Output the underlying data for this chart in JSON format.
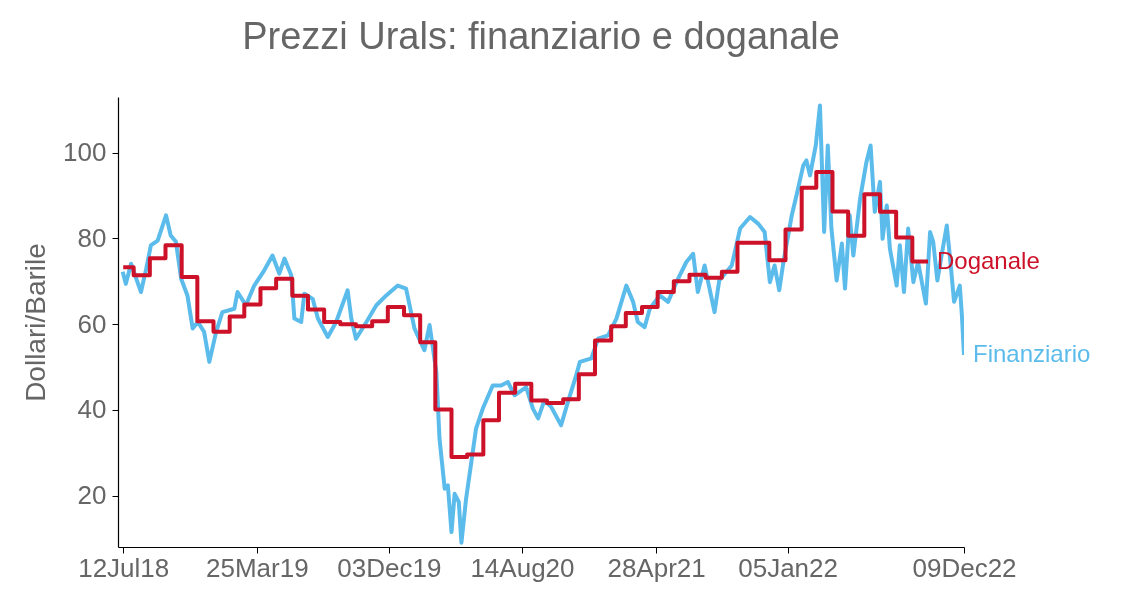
{
  "chart_data": {
    "type": "line",
    "title": "Prezzi Urals: finanziario e doganale",
    "ylabel": "Dollari/Barile",
    "xlim": [
      "2018-07-02",
      "2022-12-09"
    ],
    "ylim": [
      8,
      113
    ],
    "yticks": [
      20,
      40,
      60,
      80,
      100
    ],
    "xticks": [
      {
        "value": "2018-07-12",
        "label": "12Jul18"
      },
      {
        "value": "2019-03-25",
        "label": "25Mar19"
      },
      {
        "value": "2019-12-03",
        "label": "03Dec19"
      },
      {
        "value": "2020-08-14",
        "label": "14Aug20"
      },
      {
        "value": "2021-04-28",
        "label": "28Apr21"
      },
      {
        "value": "2022-01-05",
        "label": "05Jan22"
      },
      {
        "value": "2022-12-09",
        "label": "09Dec22"
      }
    ],
    "series": [
      {
        "name": "Finanziario",
        "type": "line",
        "color": "#5bbcec",
        "x": [
          "2018-07-11",
          "2018-07-17",
          "2018-07-27",
          "2018-08-15",
          "2018-08-25",
          "2018-09-03",
          "2018-09-16",
          "2018-10-02",
          "2018-10-11",
          "2018-10-21",
          "2018-10-31",
          "2018-11-12",
          "2018-11-22",
          "2018-12-02",
          "2018-12-14",
          "2018-12-24",
          "2019-01-06",
          "2019-01-18",
          "2019-02-10",
          "2019-02-16",
          "2019-03-04",
          "2019-03-20",
          "2019-04-08",
          "2019-04-24",
          "2019-05-07",
          "2019-05-17",
          "2019-05-30",
          "2019-06-05",
          "2019-06-18",
          "2019-06-24",
          "2019-07-10",
          "2019-07-20",
          "2019-08-08",
          "2019-08-24",
          "2019-09-15",
          "2019-09-22",
          "2019-10-01",
          "2019-10-21",
          "2019-11-09",
          "2019-11-28",
          "2019-12-20",
          "2020-01-05",
          "2020-01-21",
          "2020-02-09",
          "2020-02-19",
          "2020-03-03",
          "2020-03-09",
          "2020-03-19",
          "2020-03-25",
          "2020-04-01",
          "2020-04-07",
          "2020-04-15",
          "2020-04-20",
          "2020-04-29",
          "2020-05-09",
          "2020-05-18",
          "2020-05-31",
          "2020-06-19",
          "2020-07-05",
          "2020-07-18",
          "2020-07-31",
          "2020-08-22",
          "2020-09-04",
          "2020-09-14",
          "2020-09-26",
          "2020-10-09",
          "2020-10-28",
          "2020-11-10",
          "2020-11-26",
          "2020-12-03",
          "2020-12-25",
          "2021-01-07",
          "2021-01-26",
          "2021-02-11",
          "2021-03-02",
          "2021-03-15",
          "2021-03-24",
          "2021-04-06",
          "2021-04-16",
          "2021-05-05",
          "2021-05-21",
          "2021-06-06",
          "2021-06-25",
          "2021-07-08",
          "2021-07-17",
          "2021-07-30",
          "2021-08-18",
          "2021-08-27",
          "2021-09-20",
          "2021-10-06",
          "2021-10-25",
          "2021-11-10",
          "2021-11-22",
          "2021-12-02",
          "2021-12-11",
          "2021-12-20",
          "2021-12-28",
          "2022-01-13",
          "2022-01-22",
          "2022-02-04",
          "2022-02-10",
          "2022-02-17",
          "2022-02-28",
          "2022-03-08",
          "2022-03-16",
          "2022-03-23",
          "2022-03-30",
          "2022-04-09",
          "2022-04-19",
          "2022-04-25",
          "2022-05-04",
          "2022-05-11",
          "2022-05-24",
          "2022-06-05",
          "2022-06-13",
          "2022-06-21",
          "2022-07-01",
          "2022-07-06",
          "2022-07-14",
          "2022-07-20",
          "2022-08-02",
          "2022-08-08",
          "2022-08-16",
          "2022-08-24",
          "2022-09-03",
          "2022-09-12",
          "2022-09-27",
          "2022-10-05",
          "2022-10-11",
          "2022-10-19",
          "2022-10-27",
          "2022-11-06",
          "2022-11-13",
          "2022-11-20",
          "2022-12-01",
          "2022-12-05",
          "2022-12-09"
        ],
        "values": [
          72.2,
          69.4,
          74.1,
          67.5,
          72.9,
          78.4,
          79.5,
          85.4,
          80.7,
          79.2,
          70.6,
          66.7,
          59.0,
          60.5,
          58.2,
          51.2,
          58.2,
          62.8,
          63.6,
          67.5,
          64.4,
          69.0,
          72.5,
          76.0,
          71.8,
          75.3,
          71.4,
          61.3,
          60.5,
          67.1,
          65.9,
          61.3,
          57.0,
          60.5,
          67.9,
          61.3,
          56.6,
          60.5,
          64.4,
          66.7,
          69.0,
          68.3,
          59.0,
          53.9,
          59.8,
          48.8,
          33.3,
          21.6,
          22.4,
          11.5,
          20.4,
          18.5,
          9,
          19.3,
          27.8,
          35.6,
          40.3,
          45.7,
          45.7,
          46.5,
          43.4,
          45.3,
          40.3,
          38.0,
          42.2,
          40.7,
          36.4,
          41.8,
          48.1,
          51.2,
          52.0,
          56.6,
          57.4,
          61.3,
          69.0,
          65.2,
          60.5,
          59.3,
          63.6,
          66.7,
          65.2,
          69.8,
          74.5,
          76.4,
          67.5,
          73.7,
          62.8,
          70.2,
          73.7,
          82.3,
          85.0,
          83.4,
          81.5,
          69.8,
          73.7,
          67.9,
          74.5,
          85.4,
          90.0,
          97.0,
          98.2,
          94.7,
          101.7,
          111.0,
          81.5,
          101.7,
          82.3,
          70.2,
          78.8,
          68.3,
          85.4,
          76.0,
          89.3,
          97.8,
          101.7,
          86.2,
          93.2,
          79.9,
          87.7,
          77.6,
          69.0,
          78.4,
          67.5,
          82.3,
          69.8,
          74.5,
          64.8,
          81.5,
          79.2,
          70.2,
          76.0,
          83.0,
          74.5,
          65.2,
          69.0,
          62.0,
          52.8
        ]
      },
      {
        "name": "Doganale",
        "type": "step",
        "color": "#cc1128",
        "x": [
          "2018-07-12",
          "2018-08-01",
          "2018-09-01",
          "2018-10-01",
          "2018-11-01",
          "2018-12-01",
          "2019-01-01",
          "2019-02-01",
          "2019-03-01",
          "2019-04-01",
          "2019-05-01",
          "2019-06-01",
          "2019-07-01",
          "2019-08-01",
          "2019-09-01",
          "2019-10-01",
          "2019-11-01",
          "2019-12-01",
          "2020-01-01",
          "2020-02-01",
          "2020-03-01",
          "2020-04-01",
          "2020-05-01",
          "2020-06-01",
          "2020-07-01",
          "2020-08-01",
          "2020-09-01",
          "2020-10-01",
          "2020-11-01",
          "2020-12-01",
          "2021-01-01",
          "2021-02-01",
          "2021-03-01",
          "2021-04-01",
          "2021-05-01",
          "2021-06-01",
          "2021-07-01",
          "2021-08-01",
          "2021-09-01",
          "2021-10-01",
          "2021-11-01",
          "2021-12-01",
          "2022-01-01",
          "2022-02-01",
          "2022-03-01",
          "2022-04-01",
          "2022-05-01",
          "2022-06-01",
          "2022-07-01",
          "2022-08-01",
          "2022-09-01",
          "2022-10-01"
        ],
        "values": [
          73.3,
          71.4,
          75.4,
          78.4,
          71.0,
          60.7,
          58.2,
          61.8,
          64.6,
          68.4,
          70.6,
          66.6,
          63.4,
          60.5,
          60.0,
          59.5,
          60.7,
          64.0,
          62.1,
          55.8,
          40.1,
          29.0,
          29.6,
          37.6,
          44.0,
          46.1,
          42.2,
          41.6,
          42.5,
          48.3,
          56.2,
          59.5,
          62.6,
          64.0,
          67.5,
          70.0,
          71.5,
          70.8,
          72.2,
          79.0,
          79.0,
          74.9,
          82.1,
          91.8,
          95.5,
          86.3,
          80.6,
          90.3,
          86.2,
          80.2,
          74.6,
          74.6
        ]
      }
    ]
  }
}
